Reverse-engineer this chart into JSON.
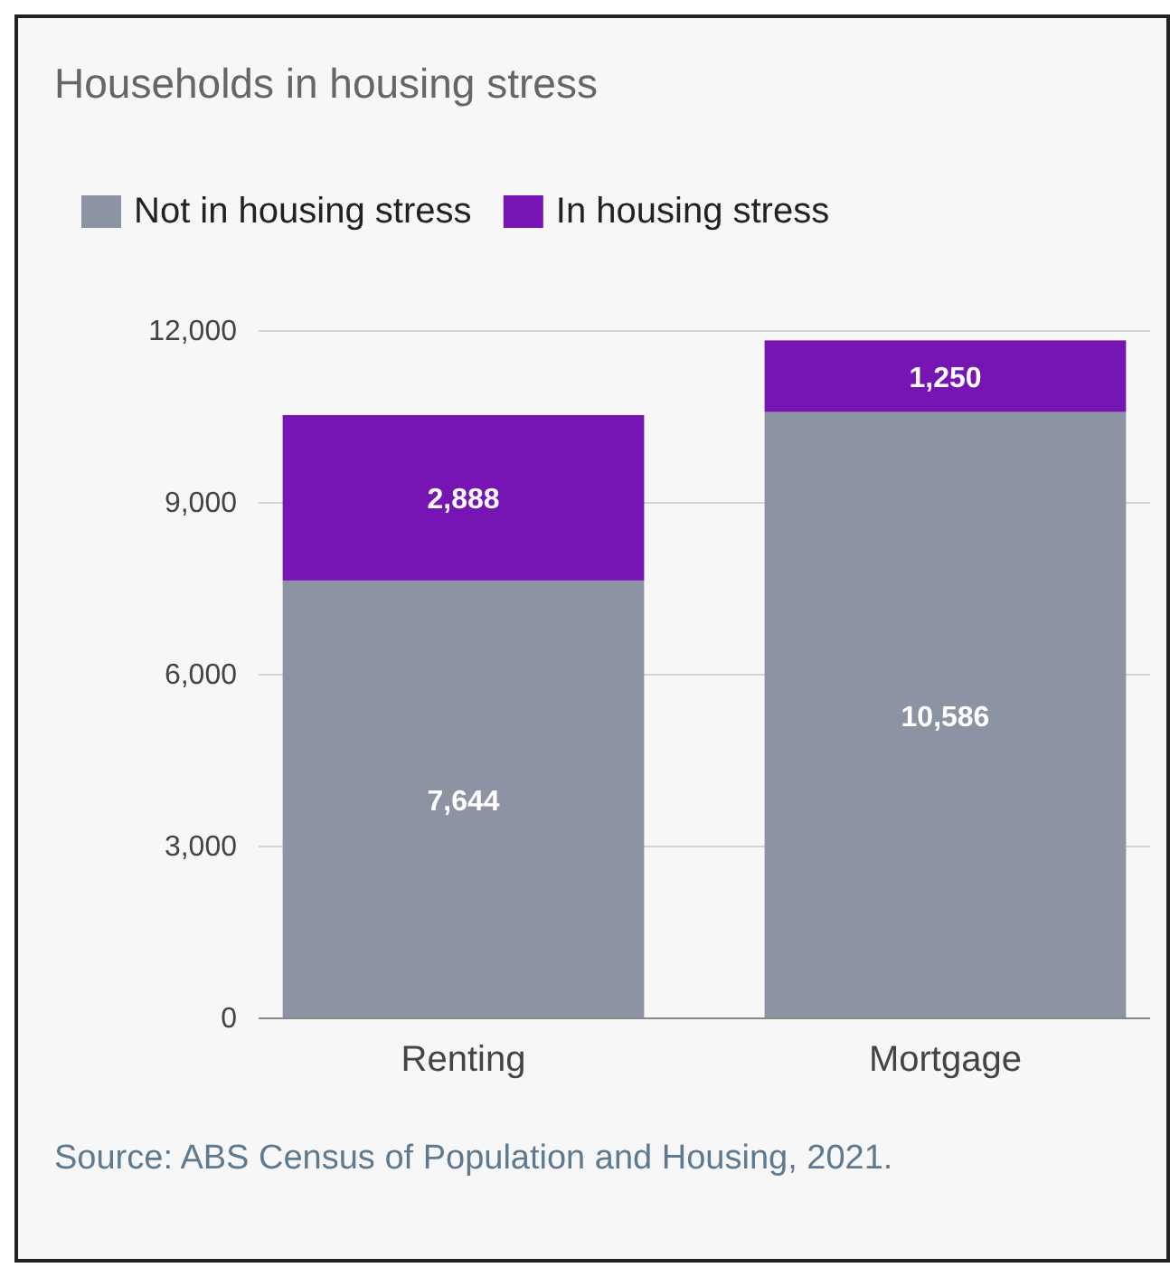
{
  "chart_data": {
    "type": "bar",
    "title": "Households in housing stress",
    "categories": [
      "Renting",
      "Mortgage"
    ],
    "stacked": true,
    "series": [
      {
        "name": "Not in housing stress",
        "color": "#8c93a3",
        "values": [
          7644,
          10586
        ],
        "value_labels": [
          "7,644",
          "10,586"
        ]
      },
      {
        "name": "In housing stress",
        "color": "#7614b4",
        "values": [
          2888,
          1250
        ],
        "value_labels": [
          "2,888",
          "1,250"
        ]
      }
    ],
    "ylim": [
      0,
      12000
    ],
    "yticks": [
      {
        "value": 0,
        "label": "0"
      },
      {
        "value": 3000,
        "label": "3,000"
      },
      {
        "value": 6000,
        "label": "6,000"
      },
      {
        "value": 9000,
        "label": "9,000"
      },
      {
        "value": 12000,
        "label": "12,000"
      }
    ],
    "grid": "y",
    "legend": "top left",
    "annotations": [
      "Source: ABS Census of Population and Housing, 2021."
    ]
  }
}
